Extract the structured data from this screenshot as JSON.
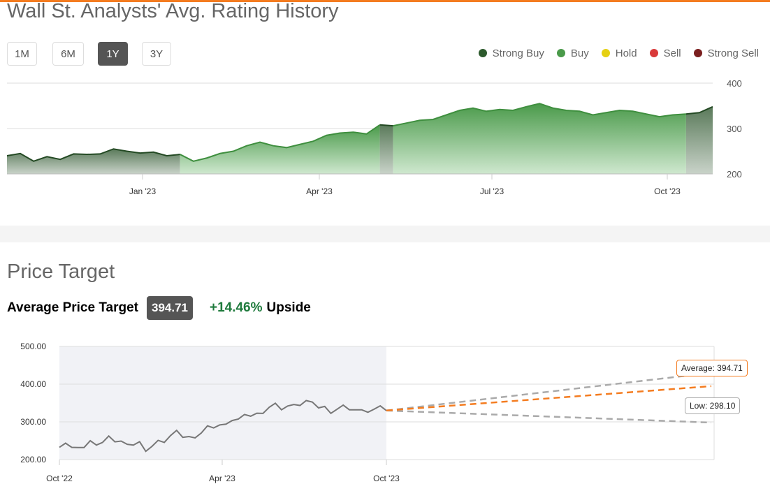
{
  "rating_section": {
    "title": "Wall St. Analysts' Avg. Rating History",
    "ranges": [
      {
        "label": "1M",
        "active": false
      },
      {
        "label": "6M",
        "active": false
      },
      {
        "label": "1Y",
        "active": true
      },
      {
        "label": "3Y",
        "active": false
      }
    ],
    "legend": [
      {
        "label": "Strong Buy",
        "color": "#2d5a2d"
      },
      {
        "label": "Buy",
        "color": "#4a9a4a"
      },
      {
        "label": "Hold",
        "color": "#e5d012"
      },
      {
        "label": "Sell",
        "color": "#d93a3a"
      },
      {
        "label": "Strong Sell",
        "color": "#7a1f1f"
      }
    ]
  },
  "price_section": {
    "title": "Price Target",
    "avg_label": "Average Price Target",
    "avg_value": "394.71",
    "upside_pct": "+14.46%",
    "upside_label": "Upside",
    "tooltip_avg": "Average: 394.71",
    "tooltip_low": "Low: 298.10"
  },
  "chart_data": [
    {
      "type": "area",
      "title": "Wall St. Analysts' Avg. Rating History",
      "yticks": [
        "400",
        "300",
        "200"
      ],
      "ylim": [
        200,
        400
      ],
      "xticks": [
        "Jan '23",
        "Apr '23",
        "Jul '23",
        "Oct '23"
      ],
      "values": [
        240,
        245,
        228,
        238,
        232,
        244,
        243,
        244,
        255,
        250,
        246,
        248,
        240,
        243,
        228,
        235,
        245,
        250,
        262,
        270,
        262,
        258,
        265,
        272,
        285,
        290,
        292,
        288,
        308,
        306,
        312,
        318,
        320,
        330,
        340,
        345,
        338,
        342,
        340,
        348,
        355,
        345,
        340,
        338,
        330,
        335,
        340,
        338,
        332,
        326,
        330,
        332,
        335,
        348
      ],
      "segments": [
        {
          "rating": "Strong Buy",
          "from": 0,
          "to": 13
        },
        {
          "rating": "Buy",
          "from": 13,
          "to": 28
        },
        {
          "rating": "Strong Buy",
          "from": 28,
          "to": 29
        },
        {
          "rating": "Buy",
          "from": 29,
          "to": 51
        },
        {
          "rating": "Strong Buy",
          "from": 51,
          "to": 53
        }
      ]
    },
    {
      "type": "line",
      "title": "Price Target",
      "yticks": [
        "500.00",
        "400.00",
        "300.00",
        "200.00"
      ],
      "ylim": [
        200,
        500
      ],
      "xticks": [
        "Oct '22",
        "Apr '23",
        "Oct '23"
      ],
      "forecast": {
        "start": 330,
        "high": 430,
        "average": 394.71,
        "low": 298.1
      }
    }
  ]
}
